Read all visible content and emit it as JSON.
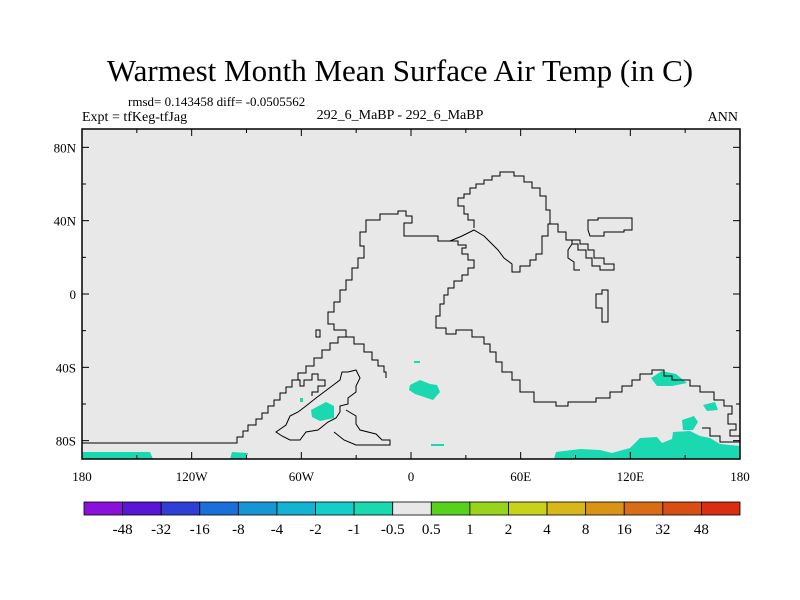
{
  "chart_data": {
    "type": "heatmap",
    "title": "Warmest Month Mean Surface Air Temp (in C)",
    "stats": "rmsd= 0.143458 diff= -0.0505562",
    "experiment": "Expt = tfKeg-tfJag",
    "comparison": "292_6_MaBP - 292_6_MaBP",
    "period": "ANN",
    "x_ticks": [
      "180",
      "120W",
      "60W",
      "0",
      "60E",
      "120E",
      "180"
    ],
    "y_ticks": [
      "80N",
      "40N",
      "0",
      "40S",
      "80S"
    ],
    "xlim": [
      -180,
      180
    ],
    "ylim": [
      -90,
      90
    ],
    "background_color": "#e8e8e8",
    "colorbar": {
      "labels": [
        "-48",
        "-32",
        "-16",
        "-8",
        "-4",
        "-2",
        "-1",
        "-0.5",
        "0.5",
        "1",
        "2",
        "4",
        "8",
        "16",
        "32",
        "48"
      ],
      "colors": [
        "#8a11d9",
        "#5a16d6",
        "#2f3fd6",
        "#1a70d8",
        "#1796d6",
        "#15b3d3",
        "#16cec9",
        "#1ad9b0",
        "#e8e8e8",
        "#57d21c",
        "#99d41c",
        "#c8d21b",
        "#d8b71a",
        "#d99418",
        "#d96d15",
        "#d94f12",
        "#d92e0f"
      ]
    },
    "anomaly_regions": [
      {
        "value_class": "-1 to -0.5",
        "color": "#1ad9b0",
        "area": "south polar band 180-145W, 82-90S"
      },
      {
        "value_class": "-1 to -0.5",
        "color": "#1ad9b0",
        "area": "south Atlantic off South America near 30W, 60S"
      },
      {
        "value_class": "-1 to -0.5",
        "color": "#1ad9b0",
        "area": "south Atlantic near 10E, 52S"
      },
      {
        "value_class": "-1 to -0.5",
        "color": "#1ad9b0",
        "area": "Southern Ocean / Antarctic coast 90E-165E, 45S-90S"
      }
    ]
  }
}
